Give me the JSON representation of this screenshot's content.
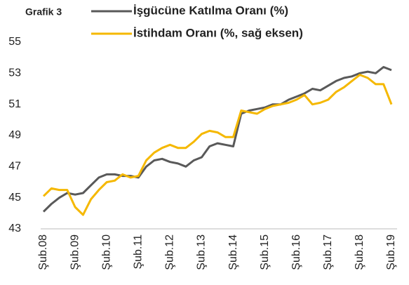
{
  "chart_data": {
    "type": "line",
    "title": "Grafik 3",
    "categories": [
      "Şub.08",
      null,
      null,
      null,
      "Şub.09",
      null,
      null,
      null,
      "Şub.10",
      null,
      null,
      null,
      "Şub.11",
      null,
      null,
      null,
      "Şub.12",
      null,
      null,
      null,
      "Şub.13",
      null,
      null,
      null,
      "Şub.14",
      null,
      null,
      null,
      "Şub.15",
      null,
      null,
      null,
      "Şub.16",
      null,
      null,
      null,
      "Şub.17",
      null,
      null,
      null,
      "Şub.18",
      null,
      null,
      null,
      "Şub.19"
    ],
    "series": [
      {
        "name": "İşgücüne Katılma Oranı (%)",
        "color": "#595959",
        "values": [
          44.1,
          44.6,
          45.0,
          45.3,
          45.2,
          45.3,
          45.8,
          46.3,
          46.5,
          46.5,
          46.4,
          46.4,
          46.3,
          47.0,
          47.4,
          47.5,
          47.3,
          47.2,
          47.0,
          47.4,
          47.6,
          48.3,
          48.5,
          48.4,
          48.3,
          50.4,
          50.6,
          50.7,
          50.8,
          51.0,
          51.0,
          51.3,
          51.5,
          51.7,
          52.0,
          51.9,
          52.2,
          52.5,
          52.7,
          52.8,
          53.0,
          53.1,
          53.0,
          53.4,
          53.2
        ]
      },
      {
        "name": "İstihdam Oranı (%, sağ eksen)",
        "color": "#f5b800",
        "values": [
          45.1,
          45.6,
          45.5,
          45.5,
          44.4,
          43.9,
          44.9,
          45.5,
          46.0,
          46.1,
          46.5,
          46.3,
          46.4,
          47.4,
          47.9,
          48.2,
          48.4,
          48.2,
          48.2,
          48.6,
          49.1,
          49.3,
          49.2,
          48.9,
          48.9,
          50.6,
          50.5,
          50.4,
          50.7,
          50.9,
          51.0,
          51.1,
          51.3,
          51.6,
          51.0,
          51.1,
          51.3,
          51.8,
          52.1,
          52.5,
          52.9,
          52.7,
          52.3,
          52.3,
          51.0
        ]
      }
    ],
    "ylim": [
      43,
      55
    ],
    "yticks": [
      43,
      45,
      47,
      49,
      51,
      53,
      55
    ]
  }
}
